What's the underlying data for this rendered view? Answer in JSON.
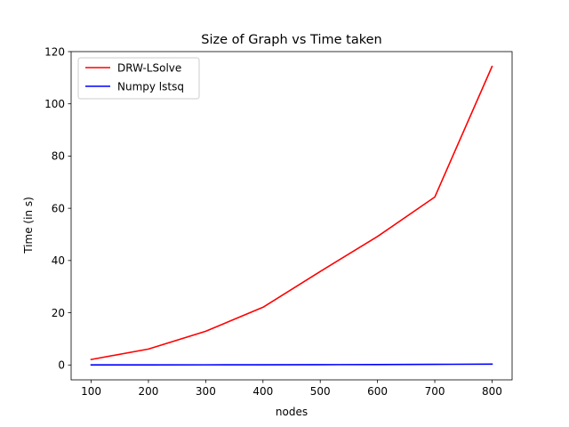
{
  "chart_data": {
    "type": "line",
    "title": "Size of Graph vs Time taken",
    "xlabel": "nodes",
    "ylabel": "Time (in s)",
    "x": [
      100,
      200,
      300,
      400,
      500,
      600,
      700,
      800
    ],
    "xlim": [
      65,
      835
    ],
    "ylim": [
      -5.7,
      120
    ],
    "xticks": [
      100,
      200,
      300,
      400,
      500,
      600,
      700,
      800
    ],
    "yticks": [
      0,
      20,
      40,
      60,
      80,
      100,
      120
    ],
    "grid": false,
    "legend_position": "top-left",
    "series": [
      {
        "name": "DRW-LSolve",
        "color": "#ff0000",
        "values": [
          2.1,
          6.1,
          12.9,
          22.1,
          35.8,
          49.2,
          64.3,
          114.3
        ]
      },
      {
        "name": "Numpy lstsq",
        "color": "#0000ff",
        "values": [
          0.02,
          0.03,
          0.05,
          0.08,
          0.12,
          0.17,
          0.24,
          0.32
        ]
      }
    ]
  }
}
